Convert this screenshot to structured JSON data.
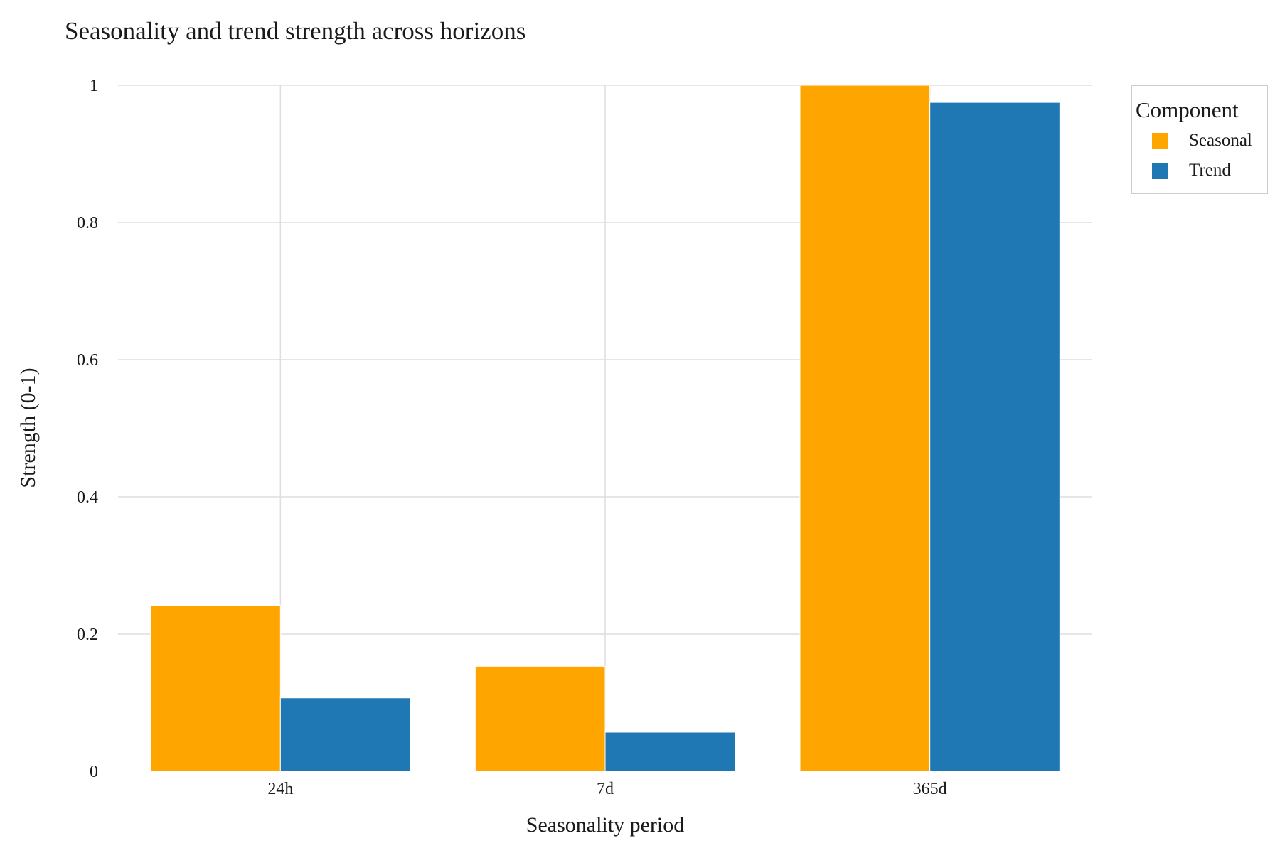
{
  "chart_data": {
    "type": "bar",
    "title": "Seasonality and trend strength across horizons",
    "xlabel": "Seasonality period",
    "ylabel": "Strength (0-1)",
    "categories": [
      "24h",
      "7d",
      "365d"
    ],
    "series": [
      {
        "name": "Seasonal",
        "color": "#FFA500",
        "values": [
          0.242,
          0.153,
          1.0
        ]
      },
      {
        "name": "Trend",
        "color": "#1F77B4",
        "values": [
          0.107,
          0.057,
          0.975
        ]
      }
    ],
    "ylim": [
      0,
      1
    ],
    "yticks": [
      0,
      0.2,
      0.4,
      0.6,
      0.8,
      1
    ],
    "ytick_labels": [
      "0",
      "0.2",
      "0.4",
      "0.6",
      "0.8",
      "1"
    ],
    "grid": true,
    "legend": {
      "title": "Component",
      "placement": "top-right, outside"
    }
  }
}
